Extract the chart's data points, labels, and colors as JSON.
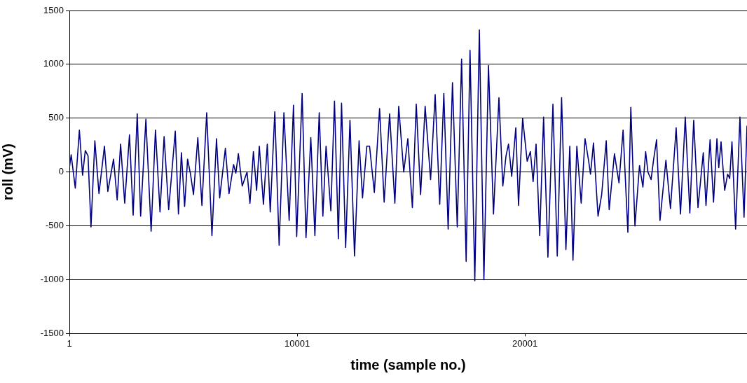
{
  "chart_data": {
    "type": "line",
    "xlabel": "time (sample no.)",
    "ylabel": "roll (mV)",
    "color": "#000080",
    "marker": "none",
    "grid": "y",
    "legend": false,
    "xlim": [
      1,
      29750
    ],
    "ylim": [
      -1500,
      1500
    ],
    "xticks": [
      1,
      10001,
      20001
    ],
    "yticks": [
      -1500,
      -1000,
      -500,
      0,
      500,
      1000,
      1500
    ],
    "x": [
      1,
      80,
      260,
      440,
      580,
      700,
      820,
      950,
      1120,
      1300,
      1540,
      1690,
      1940,
      2100,
      2250,
      2430,
      2640,
      2800,
      2980,
      3130,
      3360,
      3590,
      3780,
      3980,
      4160,
      4360,
      4650,
      4790,
      4920,
      5060,
      5190,
      5320,
      5450,
      5640,
      5820,
      6030,
      6260,
      6460,
      6600,
      6850,
      7010,
      7210,
      7310,
      7420,
      7590,
      7800,
      7930,
      8080,
      8220,
      8340,
      8520,
      8690,
      8820,
      9020,
      9210,
      9420,
      9650,
      9840,
      9980,
      10220,
      10390,
      10600,
      10780,
      10970,
      11130,
      11270,
      11480,
      11640,
      11810,
      11950,
      12130,
      12320,
      12520,
      12720,
      12870,
      13060,
      13180,
      13390,
      13620,
      13820,
      14060,
      14290,
      14460,
      14680,
      14860,
      15060,
      15230,
      15420,
      15620,
      15860,
      16060,
      16260,
      16440,
      16630,
      16820,
      17030,
      17220,
      17420,
      17590,
      17800,
      18000,
      18200,
      18400,
      18620,
      18860,
      19030,
      19170,
      19280,
      19420,
      19600,
      19720,
      19900,
      20100,
      20240,
      20360,
      20490,
      20650,
      20820,
      21010,
      21230,
      21420,
      21610,
      21800,
      21970,
      22110,
      22280,
      22470,
      22640,
      22800,
      22880,
      23010,
      23210,
      23370,
      23570,
      23700,
      23930,
      24130,
      24310,
      24520,
      24650,
      24830,
      25030,
      25180,
      25300,
      25400,
      25540,
      25640,
      25780,
      25930,
      26190,
      26390,
      26640,
      26830,
      27040,
      27240,
      27410,
      27600,
      27830,
      27950,
      28130,
      28280,
      28430,
      28510,
      28610,
      28770,
      28900,
      28990,
      29090,
      29250,
      29440,
      29620,
      29750
    ],
    "values": [
      40,
      160,
      -150,
      390,
      -30,
      200,
      150,
      -510,
      290,
      -200,
      240,
      -180,
      120,
      -260,
      260,
      -290,
      345,
      -400,
      540,
      -410,
      490,
      -550,
      390,
      -370,
      330,
      -350,
      380,
      -390,
      180,
      -320,
      120,
      -20,
      -210,
      320,
      -310,
      550,
      -590,
      310,
      -240,
      220,
      -200,
      70,
      -10,
      170,
      -130,
      0,
      -290,
      190,
      -170,
      240,
      -300,
      260,
      -370,
      560,
      -680,
      550,
      -450,
      620,
      -600,
      730,
      -610,
      320,
      -590,
      550,
      -410,
      240,
      -360,
      660,
      -620,
      640,
      -700,
      480,
      -780,
      290,
      -240,
      240,
      240,
      -190,
      590,
      -280,
      540,
      -290,
      610,
      0,
      310,
      -330,
      630,
      -210,
      610,
      -70,
      720,
      -300,
      730,
      -530,
      830,
      -510,
      1050,
      -830,
      1130,
      -1010,
      1320,
      -1000,
      990,
      -390,
      690,
      -130,
      150,
      260,
      -40,
      410,
      -310,
      500,
      100,
      190,
      -90,
      260,
      -590,
      510,
      -790,
      630,
      -780,
      690,
      -720,
      240,
      -820,
      240,
      -290,
      310,
      100,
      -20,
      270,
      -410,
      -210,
      290,
      -350,
      170,
      -100,
      390,
      -560,
      600,
      -500,
      60,
      -140,
      190,
      0,
      -70,
      100,
      300,
      -450,
      110,
      -340,
      410,
      -390,
      510,
      -380,
      480,
      -330,
      180,
      -310,
      300,
      -280,
      310,
      40,
      280,
      -170,
      -20,
      -60,
      280,
      -530,
      510,
      -420,
      430
    ]
  }
}
